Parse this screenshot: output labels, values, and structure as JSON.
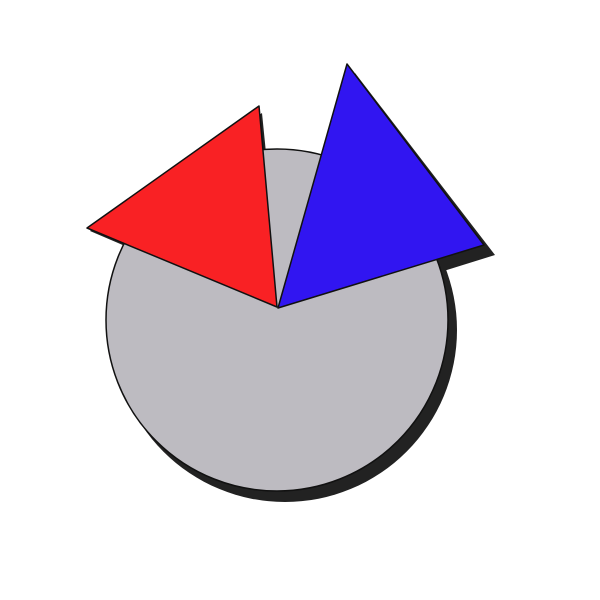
{
  "diagram": {
    "background_color": "#ffffff",
    "shadow_color": "#222222",
    "outline_color": "#111111",
    "shapes": [
      {
        "id": "disc",
        "kind": "circle",
        "fill": "#bdbbc1"
      },
      {
        "id": "red-wedge",
        "kind": "triangle",
        "fill": "#f92124"
      },
      {
        "id": "blue-wedge",
        "kind": "triangle",
        "fill": "#3115f1"
      }
    ]
  }
}
